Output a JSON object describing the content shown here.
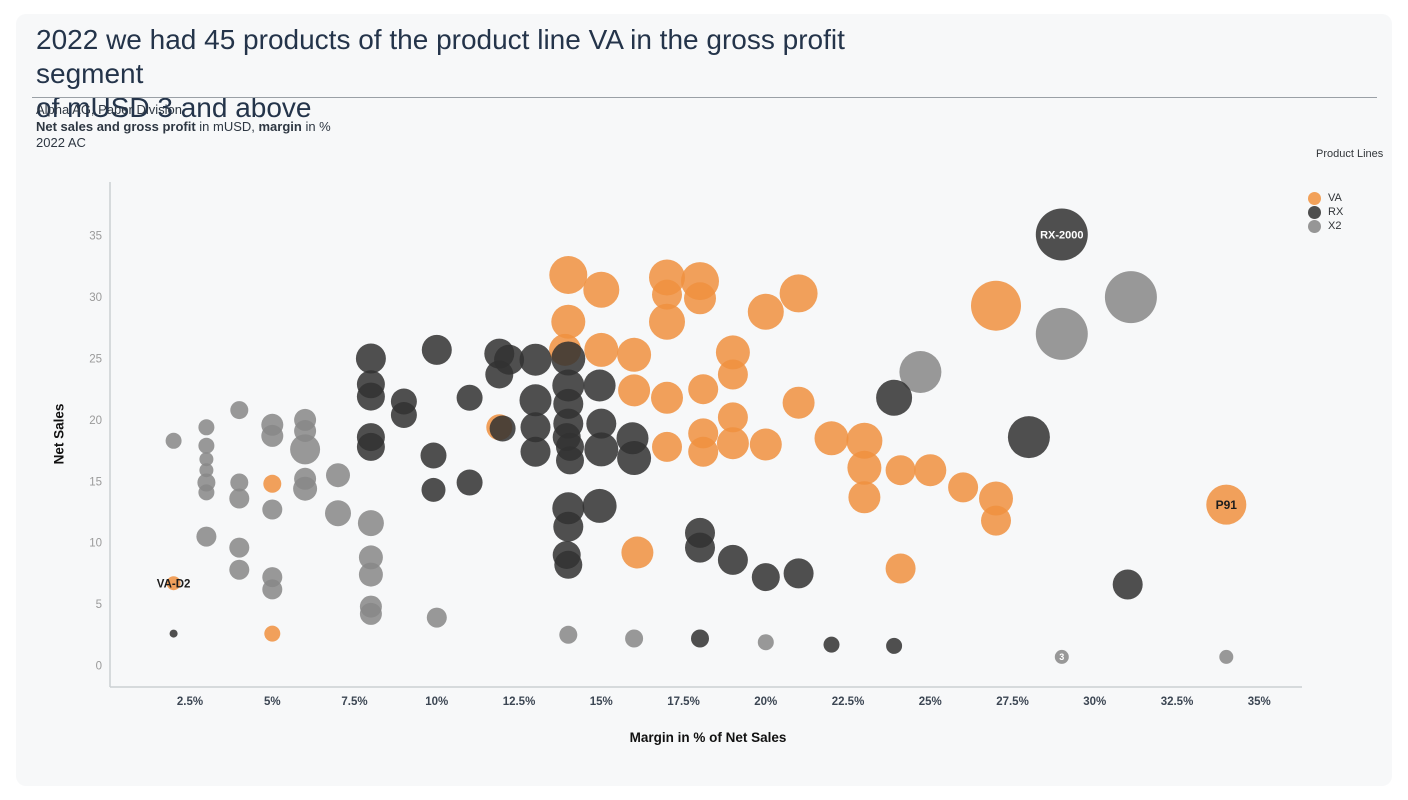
{
  "header": {
    "title_line1": "2022 we had 45 products of the product line VA in the gross profit segment",
    "title_line2": "of mUSD 3 and above",
    "subtitle_line1": "Alpha AG, Paper Division",
    "subtitle_line2_bold1": "Net sales and gross profit",
    "subtitle_line2_mid": " in mUSD, ",
    "subtitle_line2_bold2": "margin",
    "subtitle_line2_tail": " in %",
    "subtitle_line3": "2022 AC"
  },
  "legend": {
    "title": "Product Lines",
    "items": [
      {
        "label": "VA",
        "color": "#f2a159"
      },
      {
        "label": "RX",
        "color": "#4e4e4e"
      },
      {
        "label": "X2",
        "color": "#969696"
      }
    ]
  },
  "chart_data": {
    "type": "scatter",
    "subtype": "bubble",
    "title": "2022 we had 45 products of the product line VA in the gross profit segment of mUSD 3 and above",
    "xlabel": "Margin in % of Net Sales",
    "ylabel": "Net Sales",
    "x_ticks": [
      "2.5%",
      "5%",
      "7.5%",
      "10%",
      "12.5%",
      "15%",
      "17.5%",
      "20%",
      "22.5%",
      "25%",
      "27.5%",
      "30%",
      "32.5%",
      "35%"
    ],
    "x_tick_values": [
      2.5,
      5,
      7.5,
      10,
      12.5,
      15,
      17.5,
      20,
      22.5,
      25,
      27.5,
      30,
      32.5,
      35
    ],
    "y_ticks": [
      0,
      5,
      10,
      15,
      20,
      25,
      30,
      35
    ],
    "xlim": [
      0.1,
      36.3
    ],
    "ylim": [
      -1.8,
      39.3
    ],
    "grid": false,
    "legend_position": "top-right",
    "point_format": "[margin_pct, net_sales_mUSD, bubble_radius_px] or object with label",
    "opacity": 0.85,
    "series": [
      {
        "name": "X2",
        "color": "#878787",
        "points": [
          [
            2.0,
            18.3,
            8
          ],
          [
            3.0,
            19.4,
            8
          ],
          [
            3.0,
            17.9,
            8
          ],
          [
            3.0,
            16.8,
            7
          ],
          [
            3.0,
            15.9,
            7
          ],
          [
            3.0,
            14.9,
            9
          ],
          [
            3.0,
            14.1,
            8
          ],
          [
            3.0,
            10.5,
            10
          ],
          [
            4.0,
            20.8,
            9
          ],
          [
            4.0,
            14.9,
            9
          ],
          [
            4.0,
            13.6,
            10
          ],
          [
            4.0,
            9.6,
            10
          ],
          [
            4.0,
            7.8,
            10
          ],
          [
            5.0,
            19.6,
            11
          ],
          [
            5.0,
            18.7,
            11
          ],
          [
            5.0,
            12.7,
            10
          ],
          [
            5.0,
            7.2,
            10
          ],
          [
            5.0,
            6.2,
            10
          ],
          [
            6.0,
            20.0,
            11
          ],
          [
            6.0,
            19.1,
            11
          ],
          [
            6.0,
            17.6,
            15
          ],
          [
            6.0,
            15.2,
            11
          ],
          [
            6.0,
            14.4,
            12
          ],
          [
            7.0,
            15.5,
            12
          ],
          [
            7.0,
            12.4,
            13
          ],
          [
            8.0,
            11.6,
            13
          ],
          [
            8.0,
            8.8,
            12
          ],
          [
            8.0,
            7.4,
            12
          ],
          [
            8.0,
            4.8,
            11
          ],
          [
            8.0,
            4.2,
            11
          ],
          [
            10.0,
            3.9,
            10
          ],
          [
            14.0,
            2.5,
            9
          ],
          [
            16.0,
            2.2,
            9
          ],
          [
            20.0,
            1.9,
            8
          ],
          [
            24.7,
            23.9,
            21
          ],
          [
            29.0,
            27.0,
            26
          ],
          [
            31.1,
            30.0,
            26
          ],
          {
            "x": 29.0,
            "y": 0.7,
            "r": 7,
            "label": "3",
            "label_color": "#ffffff",
            "label_size": 9
          },
          [
            34.0,
            0.7,
            7
          ]
        ]
      },
      {
        "name": "VA",
        "color": "#f0913f",
        "points": [
          {
            "x": 2.0,
            "y": 6.7,
            "r": 7,
            "label": "VA-D2",
            "label_color": "#1d1d1d",
            "label_size": 11.5
          },
          [
            5.0,
            14.8,
            9
          ],
          [
            5.0,
            2.6,
            8
          ],
          [
            11.9,
            19.4,
            13
          ],
          [
            13.9,
            25.7,
            16
          ],
          [
            14.0,
            31.8,
            19
          ],
          [
            14.0,
            28.0,
            17
          ],
          [
            15.0,
            30.6,
            18
          ],
          [
            15.0,
            25.7,
            17
          ],
          [
            16.0,
            25.3,
            17
          ],
          [
            16.0,
            22.4,
            16
          ],
          [
            16.1,
            9.2,
            16
          ],
          [
            17.0,
            31.6,
            18
          ],
          [
            17.0,
            30.2,
            15
          ],
          [
            17.0,
            28.0,
            18
          ],
          [
            17.0,
            21.8,
            16
          ],
          [
            17.0,
            17.8,
            15
          ],
          [
            18.0,
            31.3,
            19
          ],
          [
            18.0,
            29.9,
            16
          ],
          [
            18.1,
            22.5,
            15
          ],
          [
            18.1,
            18.9,
            15
          ],
          [
            18.1,
            17.4,
            15
          ],
          [
            19.0,
            25.5,
            17
          ],
          [
            19.0,
            23.7,
            15
          ],
          [
            19.0,
            20.2,
            15
          ],
          [
            19.0,
            18.1,
            16
          ],
          [
            20.0,
            28.8,
            18
          ],
          [
            20.0,
            18.0,
            16
          ],
          [
            21.0,
            30.3,
            19
          ],
          [
            21.0,
            21.4,
            16
          ],
          [
            22.0,
            18.5,
            17
          ],
          [
            23.0,
            18.3,
            18
          ],
          [
            23.0,
            16.1,
            17
          ],
          [
            23.0,
            13.7,
            16
          ],
          [
            24.1,
            15.9,
            15
          ],
          [
            24.1,
            7.9,
            15
          ],
          [
            25.0,
            15.9,
            16
          ],
          [
            26.0,
            14.5,
            15
          ],
          [
            27.0,
            29.3,
            25
          ],
          [
            27.0,
            13.6,
            17
          ],
          [
            27.0,
            11.8,
            15
          ],
          {
            "x": 34.0,
            "y": 13.1,
            "r": 20,
            "label": "P91",
            "label_color": "#1d1d1d",
            "label_size": 12
          }
        ]
      },
      {
        "name": "RX",
        "color": "#313131",
        "points": [
          [
            2.0,
            2.6,
            4
          ],
          [
            8.0,
            25.0,
            15
          ],
          [
            8.0,
            22.9,
            14
          ],
          [
            8.0,
            21.9,
            14
          ],
          [
            8.0,
            18.6,
            14
          ],
          [
            8.0,
            17.8,
            14
          ],
          [
            9.0,
            21.5,
            13
          ],
          [
            9.0,
            20.4,
            13
          ],
          [
            9.9,
            17.1,
            13
          ],
          [
            9.9,
            14.3,
            12
          ],
          [
            10.0,
            25.7,
            15
          ],
          [
            11.0,
            21.8,
            13
          ],
          [
            11.0,
            14.9,
            13
          ],
          [
            11.9,
            25.4,
            15
          ],
          [
            12.2,
            24.9,
            15
          ],
          [
            11.9,
            23.7,
            14
          ],
          [
            12.0,
            19.3,
            13
          ],
          [
            13.0,
            24.9,
            16
          ],
          [
            13.0,
            21.6,
            16
          ],
          [
            13.0,
            19.4,
            15
          ],
          [
            13.0,
            17.4,
            15
          ],
          [
            14.0,
            25.0,
            17
          ],
          [
            14.0,
            22.8,
            16
          ],
          [
            14.0,
            21.3,
            15
          ],
          [
            14.0,
            19.7,
            15
          ],
          [
            13.95,
            18.6,
            14
          ],
          [
            14.05,
            17.8,
            14
          ],
          [
            14.05,
            16.7,
            14
          ],
          [
            14.0,
            12.8,
            16
          ],
          [
            14.0,
            11.3,
            15
          ],
          [
            13.95,
            9.0,
            14
          ],
          [
            14.0,
            8.2,
            14
          ],
          [
            14.95,
            22.8,
            16
          ],
          [
            15.0,
            19.7,
            15
          ],
          [
            15.0,
            17.6,
            17
          ],
          [
            14.95,
            13.0,
            17
          ],
          [
            15.95,
            18.5,
            16
          ],
          [
            16.0,
            16.9,
            17
          ],
          [
            18.0,
            10.8,
            15
          ],
          [
            18.0,
            9.6,
            15
          ],
          [
            18.0,
            2.2,
            9
          ],
          [
            19.0,
            8.6,
            15
          ],
          [
            20.0,
            7.2,
            14
          ],
          [
            21.0,
            7.5,
            15
          ],
          [
            22.0,
            1.7,
            8
          ],
          [
            23.9,
            21.8,
            18
          ],
          [
            23.9,
            1.6,
            8
          ],
          [
            28.0,
            18.6,
            21
          ],
          {
            "x": 29.0,
            "y": 35.1,
            "r": 26,
            "label": "RX-2000",
            "label_color": "#ffffff",
            "label_size": 11
          },
          [
            31.0,
            6.6,
            15
          ]
        ]
      }
    ]
  }
}
